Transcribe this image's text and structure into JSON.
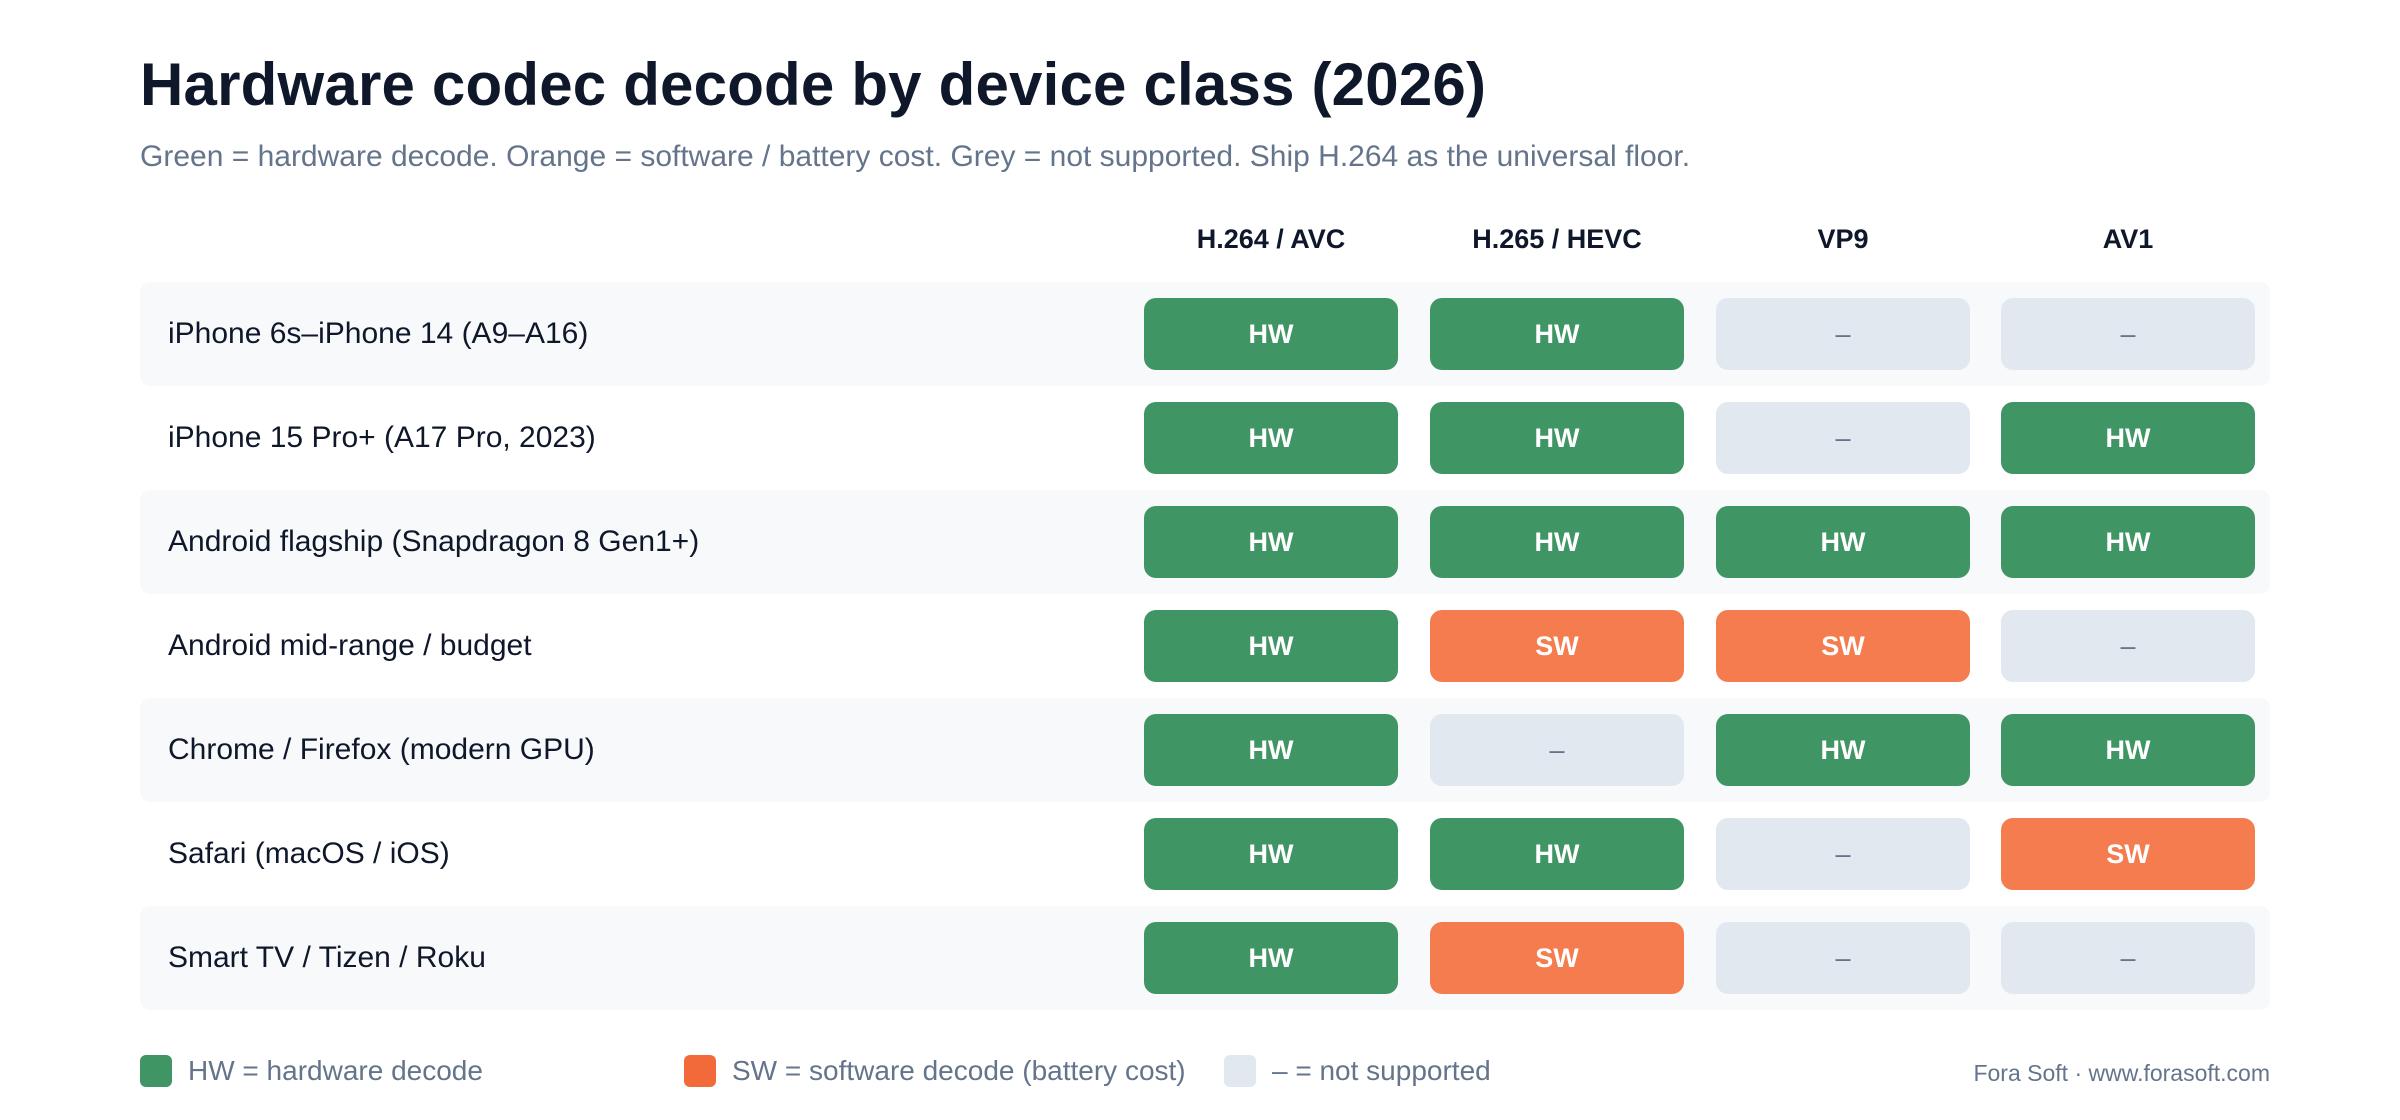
{
  "title": "Hardware codec decode by device class (2026)",
  "subtitle": "Green = hardware decode. Orange = software / battery cost. Grey = not supported. Ship H.264 as the universal floor.",
  "colors": {
    "hw": "#3f9563",
    "sw": "#f47c4f",
    "na": "#e2e8f0",
    "title": "#0f172a",
    "muted": "#64748b",
    "row_shade": "#f8f9fb"
  },
  "chart_data": {
    "type": "table",
    "columns": [
      "H.264 / AVC",
      "H.265 / HEVC",
      "VP9",
      "AV1"
    ],
    "rows": [
      {
        "label": "iPhone 6s–iPhone 14 (A9–A16)",
        "values": [
          "HW",
          "HW",
          "–",
          "–"
        ]
      },
      {
        "label": "iPhone 15 Pro+ (A17 Pro, 2023)",
        "values": [
          "HW",
          "HW",
          "–",
          "HW"
        ]
      },
      {
        "label": "Android flagship (Snapdragon 8 Gen1+)",
        "values": [
          "HW",
          "HW",
          "HW",
          "HW"
        ]
      },
      {
        "label": "Android mid-range / budget",
        "values": [
          "HW",
          "SW",
          "SW",
          "–"
        ]
      },
      {
        "label": "Chrome / Firefox (modern GPU)",
        "values": [
          "HW",
          "–",
          "HW",
          "HW"
        ]
      },
      {
        "label": "Safari (macOS / iOS)",
        "values": [
          "HW",
          "HW",
          "–",
          "SW"
        ]
      },
      {
        "label": "Smart TV / Tizen / Roku",
        "values": [
          "HW",
          "SW",
          "–",
          "–"
        ]
      }
    ],
    "legend": [
      {
        "key": "hw",
        "label": "HW = hardware decode"
      },
      {
        "key": "sw",
        "label": "SW = software decode (battery cost)"
      },
      {
        "key": "na",
        "label": "– = not supported"
      }
    ]
  },
  "credit": "Fora Soft · www.forasoft.com"
}
